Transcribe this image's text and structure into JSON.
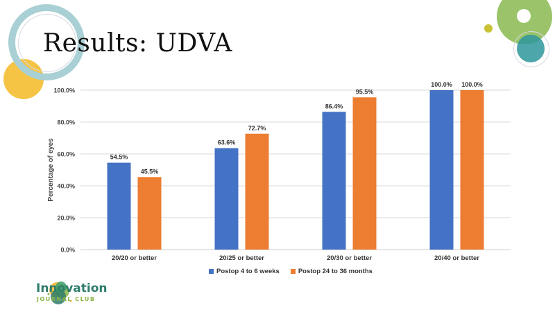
{
  "slide": {
    "title": "Results: UDVA",
    "logo": {
      "name": "Innovation",
      "subtitle": "JOURNAL CLUB"
    }
  },
  "colors": {
    "series1": "#4472c4",
    "series2": "#ed7d31",
    "grid": "#d9d9d9",
    "deco_teal_ring": "#a9d0d4",
    "deco_yellow": "#f6c445",
    "deco_green": "#9bc46a",
    "deco_teal": "#3a9d9f",
    "deco_olive": "#c9c234"
  },
  "chart_data": {
    "type": "bar",
    "title": "",
    "xlabel": "",
    "ylabel": "Percentage of eyes",
    "ylim": [
      0,
      100
    ],
    "yticks": [
      "0.0%",
      "20.0%",
      "40.0%",
      "60.0%",
      "80.0%",
      "100.0%"
    ],
    "ytick_values": [
      0,
      20,
      40,
      60,
      80,
      100
    ],
    "grid": true,
    "legend_position": "bottom",
    "categories": [
      "20/20 or better",
      "20/25 or better",
      "20/30 or better",
      "20/40 or better"
    ],
    "series": [
      {
        "name": "Postop 4 to 6 weeks",
        "values": [
          54.5,
          63.6,
          86.4,
          100.0
        ],
        "labels": [
          "54.5%",
          "63.6%",
          "86.4%",
          "100.0%"
        ]
      },
      {
        "name": "Postop 24 to 36 months",
        "values": [
          45.5,
          72.7,
          95.5,
          100.0
        ],
        "labels": [
          "45.5%",
          "72.7%",
          "95.5%",
          "100.0%"
        ]
      }
    ]
  }
}
